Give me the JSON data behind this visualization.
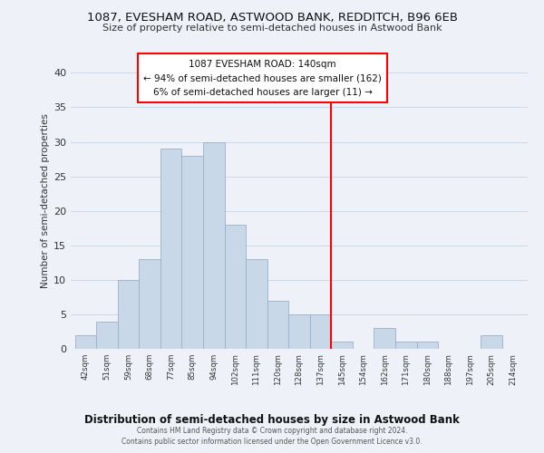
{
  "title": "1087, EVESHAM ROAD, ASTWOOD BANK, REDDITCH, B96 6EB",
  "subtitle": "Size of property relative to semi-detached houses in Astwood Bank",
  "xlabel": "Distribution of semi-detached houses by size in Astwood Bank",
  "ylabel": "Number of semi-detached properties",
  "bin_labels": [
    "42sqm",
    "51sqm",
    "59sqm",
    "68sqm",
    "77sqm",
    "85sqm",
    "94sqm",
    "102sqm",
    "111sqm",
    "120sqm",
    "128sqm",
    "137sqm",
    "145sqm",
    "154sqm",
    "162sqm",
    "171sqm",
    "180sqm",
    "188sqm",
    "197sqm",
    "205sqm",
    "214sqm"
  ],
  "bar_heights": [
    2,
    4,
    10,
    13,
    29,
    28,
    30,
    18,
    13,
    7,
    5,
    5,
    1,
    0,
    3,
    1,
    1,
    0,
    0,
    2,
    0
  ],
  "bar_color": "#c8d8e8",
  "bar_edge_color": "#9ab0c8",
  "grid_color": "#d0d8e8",
  "vline_color": "red",
  "vline_x": 12.0,
  "annotation_title": "1087 EVESHAM ROAD: 140sqm",
  "annotation_line1": "← 94% of semi-detached houses are smaller (162)",
  "annotation_line2": "6% of semi-detached houses are larger (11) →",
  "footer1": "Contains HM Land Registry data © Crown copyright and database right 2024.",
  "footer2": "Contains public sector information licensed under the Open Government Licence v3.0.",
  "ylim": [
    0,
    43
  ],
  "yticks": [
    0,
    5,
    10,
    15,
    20,
    25,
    30,
    35,
    40
  ],
  "background_color": "#eef2f8"
}
